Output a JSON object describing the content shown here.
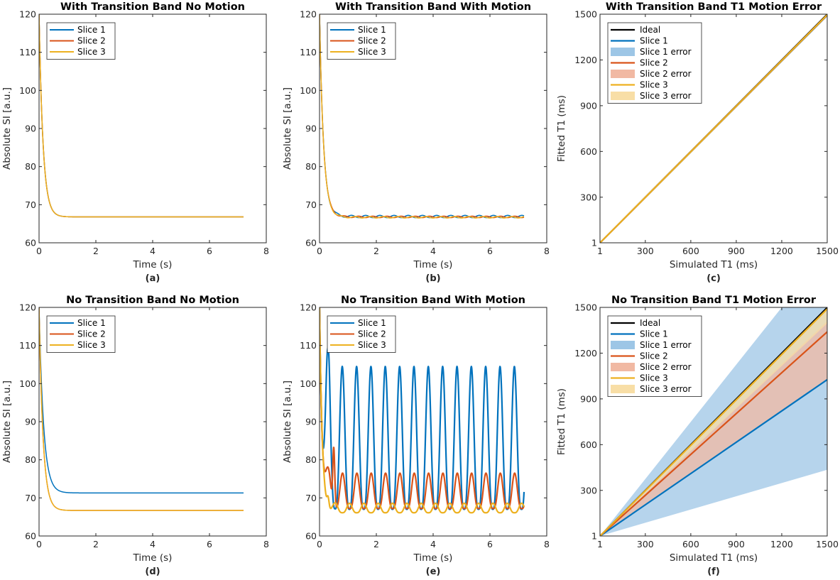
{
  "colors": {
    "slice1": "#0072BD",
    "slice2": "#D95319",
    "slice3": "#EDB120",
    "ideal": "#000000",
    "slice1_fill": "#9DC6E6",
    "slice2_fill": "#F1B9A3",
    "slice3_fill": "#F8DEA6"
  },
  "chart_data": [
    {
      "type": "line",
      "title": "With Transition Band No Motion",
      "xlabel": "Time (s)",
      "ylabel": "Absolute SI [a.u.]",
      "panel_label": "(a)",
      "xlim": [
        0,
        8
      ],
      "ylim": [
        60,
        120
      ],
      "xticks": [
        "0",
        "2",
        "4",
        "6",
        "8"
      ],
      "yticks": [
        "60",
        "70",
        "80",
        "90",
        "100",
        "110",
        "120"
      ],
      "legend_position": "top-left",
      "x_end": 7.2,
      "series": [
        {
          "name": "Slice 1",
          "color_key": "slice1",
          "start": 120,
          "baseline": 66.8,
          "tau": 0.14,
          "osc_amp": 0,
          "period": 0.5,
          "phase": 0
        },
        {
          "name": "Slice 2",
          "color_key": "slice2",
          "start": 120,
          "baseline": 66.8,
          "tau": 0.14,
          "osc_amp": 0,
          "period": 0.5,
          "phase": 0
        },
        {
          "name": "Slice 3",
          "color_key": "slice3",
          "start": 120,
          "baseline": 66.8,
          "tau": 0.14,
          "osc_amp": 0,
          "period": 0.5,
          "phase": 0
        }
      ]
    },
    {
      "type": "line",
      "title": "With Transition Band With Motion",
      "xlabel": "Time (s)",
      "ylabel": "Absolute SI [a.u.]",
      "panel_label": "(b)",
      "xlim": [
        0,
        8
      ],
      "ylim": [
        60,
        120
      ],
      "xticks": [
        "0",
        "2",
        "4",
        "6",
        "8"
      ],
      "yticks": [
        "60",
        "70",
        "80",
        "90",
        "100",
        "110",
        "120"
      ],
      "legend_position": "top-left",
      "x_end": 7.2,
      "series": [
        {
          "name": "Slice 1",
          "color_key": "slice1",
          "start": 120,
          "baseline": 66.9,
          "tau": 0.14,
          "osc_amp": 0.3,
          "period": 0.5,
          "phase": 0
        },
        {
          "name": "Slice 2",
          "color_key": "slice2",
          "start": 120,
          "baseline": 66.8,
          "tau": 0.14,
          "osc_amp": 0.2,
          "period": 0.5,
          "phase": 0.25
        },
        {
          "name": "Slice 3",
          "color_key": "slice3",
          "start": 120,
          "baseline": 66.7,
          "tau": 0.14,
          "osc_amp": 0.2,
          "period": 0.5,
          "phase": 0.12
        }
      ]
    },
    {
      "type": "area",
      "title": "With Transition Band T1 Motion Error",
      "xlabel": "Simulated T1 (ms)",
      "ylabel": "Fitted T1 (ms)",
      "panel_label": "(c)",
      "xlim": [
        1,
        1500
      ],
      "ylim": [
        1,
        1500
      ],
      "xticks": [
        "1",
        "300",
        "600",
        "900",
        "1200",
        "1500"
      ],
      "yticks": [
        "1",
        "300",
        "600",
        "900",
        "1200",
        "1500"
      ],
      "legend_position": "top-left",
      "ideal_label": "Ideal",
      "series": [
        {
          "name": "Slice 1",
          "error_label": "Slice 1 error",
          "color_key": "slice1",
          "fill_key": "slice1_fill",
          "slope": 0.995,
          "lower_slope": 0.99,
          "upper_slope": 1.0
        },
        {
          "name": "Slice 2",
          "error_label": "Slice 2 error",
          "color_key": "slice2",
          "fill_key": "slice2_fill",
          "slope": 0.996,
          "lower_slope": 0.993,
          "upper_slope": 0.999
        },
        {
          "name": "Slice 3",
          "error_label": "Slice 3 error",
          "color_key": "slice3",
          "fill_key": "slice3_fill",
          "slope": 0.997,
          "lower_slope": 0.994,
          "upper_slope": 1.0
        }
      ]
    },
    {
      "type": "line",
      "title": "No Transition Band No Motion",
      "xlabel": "Time (s)",
      "ylabel": "Absolute SI [a.u.]",
      "panel_label": "(d)",
      "xlim": [
        0,
        8
      ],
      "ylim": [
        60,
        120
      ],
      "xticks": [
        "0",
        "2",
        "4",
        "6",
        "8"
      ],
      "yticks": [
        "60",
        "70",
        "80",
        "90",
        "100",
        "110",
        "120"
      ],
      "legend_position": "top-left",
      "x_end": 7.2,
      "series": [
        {
          "name": "Slice 1",
          "color_key": "slice1",
          "start": 120,
          "baseline": 71.3,
          "tau": 0.16,
          "osc_amp": 0,
          "period": 0.5,
          "phase": 0
        },
        {
          "name": "Slice 2",
          "color_key": "slice2",
          "start": 120,
          "baseline": 66.7,
          "tau": 0.14,
          "osc_amp": 0,
          "period": 0.5,
          "phase": 0
        },
        {
          "name": "Slice 3",
          "color_key": "slice3",
          "start": 120,
          "baseline": 66.7,
          "tau": 0.14,
          "osc_amp": 0,
          "period": 0.5,
          "phase": 0
        }
      ]
    },
    {
      "type": "line",
      "title": "No Transition Band With Motion",
      "xlabel": "Time (s)",
      "ylabel": "Absolute SI [a.u.]",
      "panel_label": "(e)",
      "xlim": [
        0,
        8
      ],
      "ylim": [
        60,
        120
      ],
      "xticks": [
        "0",
        "2",
        "4",
        "6",
        "8"
      ],
      "yticks": [
        "60",
        "70",
        "80",
        "90",
        "100",
        "110",
        "120"
      ],
      "legend_position": "top-left",
      "x_end": 7.2,
      "series": [
        {
          "name": "Slice 1",
          "color_key": "slice1",
          "start": 120,
          "peak_max": 104.5,
          "peak_min": 67.0,
          "first_peak": 0.3,
          "first_peak_value": 109,
          "period": 0.505,
          "first_osc_peak": 0.8
        },
        {
          "name": "Slice 2",
          "color_key": "slice2",
          "start": 120,
          "peak_max": 76.5,
          "peak_min": 67.2,
          "first_peak": 0.5,
          "first_peak_value": 83.2,
          "period": 0.505,
          "first_osc_peak": 0.81
        },
        {
          "name": "Slice 3",
          "color_key": "slice3",
          "start": 120,
          "peak_max": 68.6,
          "peak_min": 66.1,
          "first_peak": 0.3,
          "first_peak_value": 68.6,
          "period": 0.505,
          "first_osc_peak": 0.55
        }
      ]
    },
    {
      "type": "area",
      "title": "No Transition Band T1 Motion Error",
      "xlabel": "Simulated T1 (ms)",
      "ylabel": "Fitted T1 (ms)",
      "panel_label": "(f)",
      "xlim": [
        1,
        1500
      ],
      "ylim": [
        1,
        1500
      ],
      "xticks": [
        "1",
        "300",
        "600",
        "900",
        "1200",
        "1500"
      ],
      "yticks": [
        "1",
        "300",
        "600",
        "900",
        "1200",
        "1500"
      ],
      "legend_position": "top-left",
      "ideal_label": "Ideal",
      "series": [
        {
          "name": "Slice 1",
          "error_label": "Slice 1 error",
          "color_key": "slice1",
          "fill_key": "slice1_fill",
          "slope": 0.684,
          "lower_slope": 0.29,
          "upper_slope": 1.25
        },
        {
          "name": "Slice 2",
          "error_label": "Slice 2 error",
          "color_key": "slice2",
          "fill_key": "slice2_fill",
          "slope": 0.893,
          "lower_slope": 0.684,
          "upper_slope": 0.94
        },
        {
          "name": "Slice 3",
          "error_label": "Slice 3 error",
          "color_key": "slice3",
          "fill_key": "slice3_fill",
          "slope": 0.993,
          "lower_slope": 0.93,
          "upper_slope": 1.0
        }
      ]
    }
  ]
}
